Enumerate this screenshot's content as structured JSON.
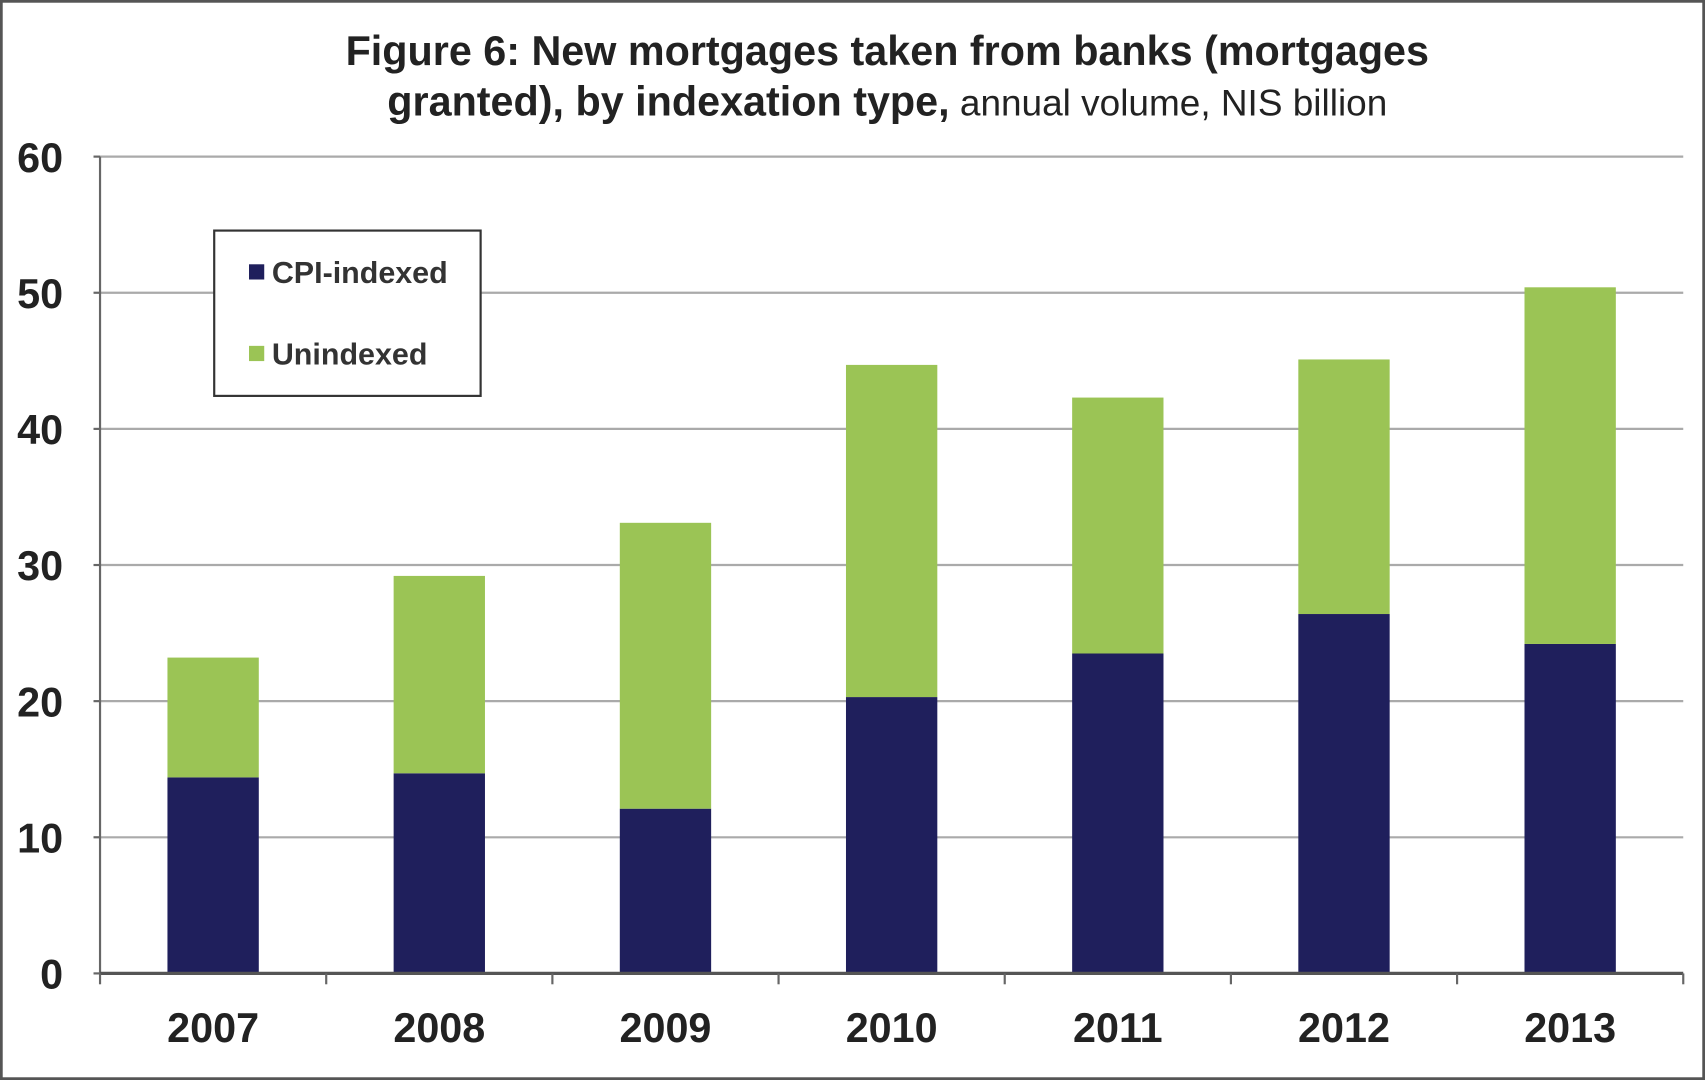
{
  "chart_data": {
    "type": "bar",
    "stacked": true,
    "title": "Figure 6: New mortgages taken from banks (mortgages granted), by indexation type,",
    "title_line1": "Figure 6: New mortgages taken from banks (mortgages",
    "title_line2_bold": "granted), by indexation type,",
    "title_line2_normal": " annual volume, NIS billion",
    "subtitle": "annual volume, NIS billion",
    "xlabel": "",
    "ylabel": "",
    "ylim": [
      0,
      60
    ],
    "yticks": [
      0,
      10,
      20,
      30,
      40,
      50,
      60
    ],
    "grid": true,
    "legend_position": "top-left",
    "categories": [
      "2007",
      "2008",
      "2009",
      "2010",
      "2011",
      "2012",
      "2013"
    ],
    "series": [
      {
        "name": "CPI-indexed",
        "color": "#1f1f5c",
        "values": [
          14.4,
          14.7,
          12.1,
          20.3,
          23.5,
          26.4,
          24.2
        ]
      },
      {
        "name": "Unindexed",
        "color": "#9bc455",
        "values": [
          8.8,
          14.5,
          21.0,
          24.4,
          18.8,
          18.7,
          26.2
        ]
      }
    ]
  }
}
